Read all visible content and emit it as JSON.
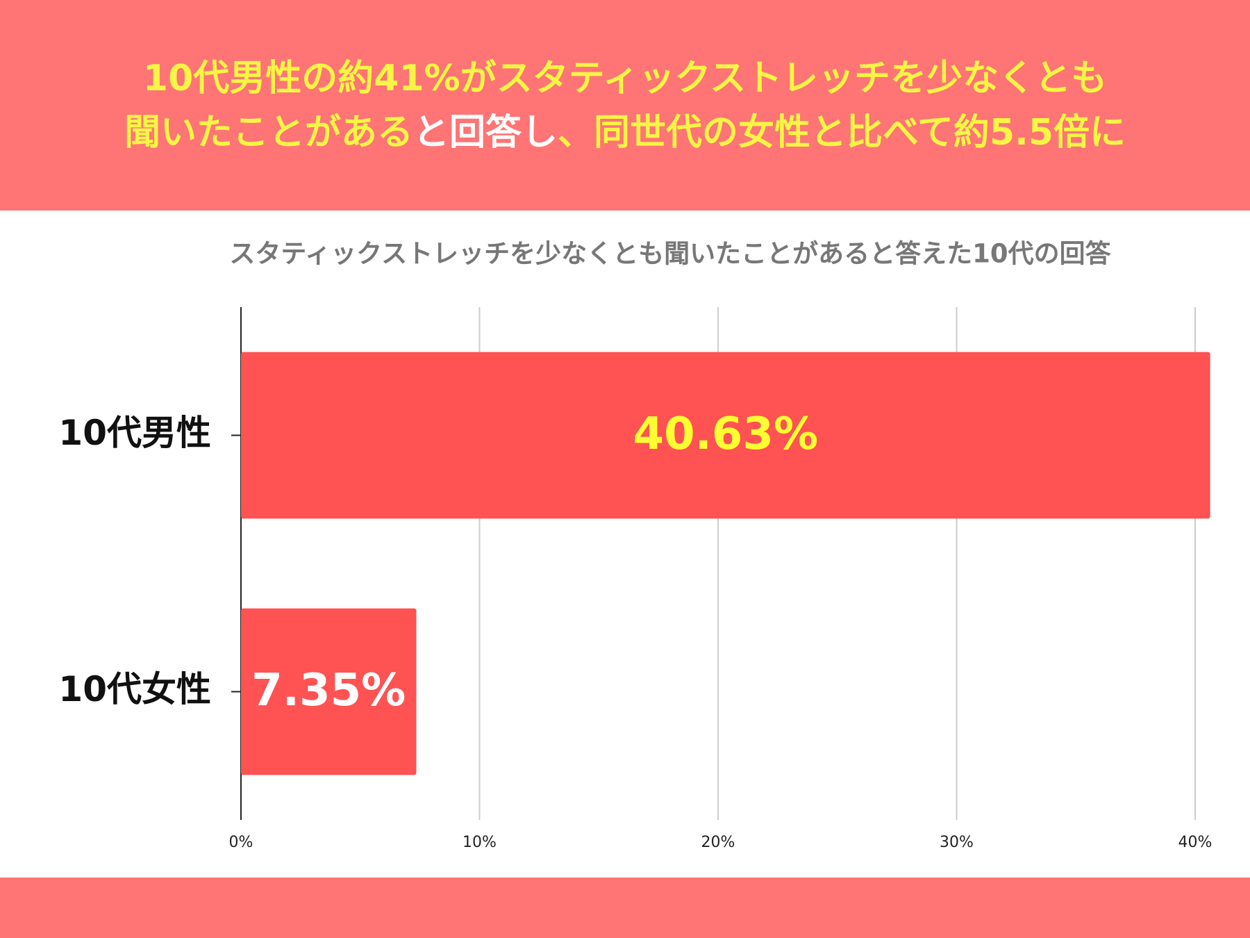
{
  "header": {
    "lines": [
      [
        {
          "text": "10代男性の約41%がスタティックストレッチを少なくとも",
          "color": "#f7f545"
        }
      ],
      [
        {
          "text": "聞いたことがある",
          "color": "#f7f545"
        },
        {
          "text": "と回答し",
          "color": "#ffffff"
        },
        {
          "text": "、同世代の女性と比べて約5.5倍に",
          "color": "#f7f545"
        }
      ]
    ]
  },
  "chart_data": {
    "type": "bar",
    "orientation": "horizontal",
    "title": "スタティックストレッチを少なくとも聞いたことがあると答えた10代の回答",
    "categories": [
      "10代男性",
      "10代女性"
    ],
    "values": [
      40.63,
      7.35
    ],
    "value_labels": [
      "40.63%",
      "7.35%"
    ],
    "label_colors": [
      "#ffff33",
      "#ffffff"
    ],
    "color": "#ff5252",
    "xlim": [
      0,
      40
    ],
    "xticks": [
      {
        "value": 0,
        "label": "0%"
      },
      {
        "value": 10,
        "label": "10%"
      },
      {
        "value": 20,
        "label": "20%"
      },
      {
        "value": 30,
        "label": "30%"
      },
      {
        "value": 40,
        "label": "40%"
      }
    ],
    "grid": true
  }
}
